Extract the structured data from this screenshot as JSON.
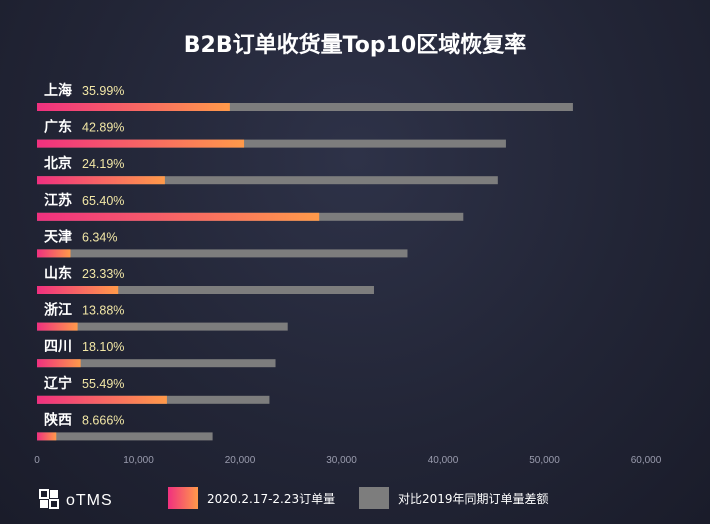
{
  "chart_data": {
    "type": "bar",
    "orientation": "horizontal",
    "title": "B2B订单收货量Top10区域恢复率",
    "categories": [
      "上海",
      "广东",
      "北京",
      "江苏",
      "天津",
      "山东",
      "浙江",
      "四川",
      "辽宁",
      "陕西"
    ],
    "rate_labels": [
      "35.99%",
      "42.89%",
      "24.19%",
      "65.40%",
      "6.34%",
      "23.33%",
      "13.88%",
      "18.10%",
      "55.49%",
      "8.666%"
    ],
    "series": [
      {
        "name": "2020.2.17-2.23订单量",
        "color_start": "#f0307f",
        "color_end": "#ff9a4a",
        "values": [
          19000,
          20400,
          12600,
          27800,
          3300,
          8000,
          4000,
          4300,
          12800,
          1900
        ]
      },
      {
        "name": "对比2019年同期订单量差额",
        "color": "#7d7d7d",
        "values": [
          52800,
          46200,
          45400,
          42000,
          36500,
          33200,
          24700,
          23500,
          22900,
          17300
        ]
      }
    ],
    "x_ticks": [
      "0",
      "10,000",
      "20,000",
      "30,000",
      "40,000",
      "50,000",
      "60,000"
    ],
    "xlim": [
      0,
      60000
    ],
    "grid": false,
    "legend_position": "bottom"
  },
  "brand": {
    "name": "oTMS"
  }
}
